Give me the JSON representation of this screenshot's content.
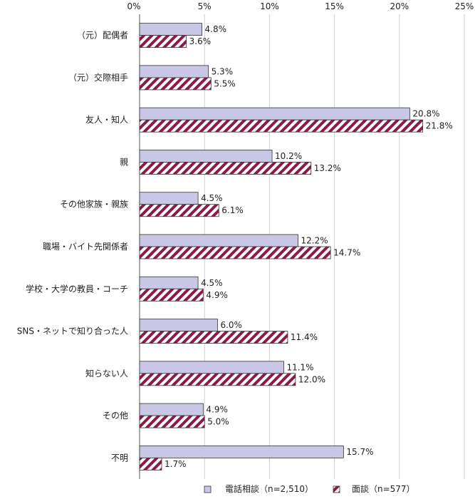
{
  "chart_data": {
    "type": "bar",
    "orientation": "horizontal",
    "title": "",
    "xlabel": "",
    "ylabel": "",
    "xlim": [
      0,
      25
    ],
    "xticks": [
      "0%",
      "5%",
      "10%",
      "15%",
      "20%",
      "25%"
    ],
    "grid": true,
    "legend_position": "bottom",
    "categories": [
      "（元）配偶者",
      "（元）交際相手",
      "友人・知人",
      "親",
      "その他家族・親族",
      "職場・バイト先関係者",
      "学校・大学の教員・コーチ",
      "SNS・ネットで知り合った人",
      "知らない人",
      "その他",
      "不明"
    ],
    "series": [
      {
        "name": "電話相談（n=2,510）",
        "color": "#c8c8e6",
        "values": [
          4.8,
          5.3,
          20.8,
          10.2,
          4.5,
          12.2,
          4.5,
          6.0,
          11.1,
          4.9,
          15.7
        ],
        "labels": [
          "4.8%",
          "5.3%",
          "20.8%",
          "10.2%",
          "4.5%",
          "12.2%",
          "4.5%",
          "6.0%",
          "11.1%",
          "4.9%",
          "15.7%"
        ]
      },
      {
        "name": "面談（n=577）",
        "color": "#8b1a4a",
        "values": [
          3.6,
          5.5,
          21.8,
          13.2,
          6.1,
          14.7,
          4.9,
          11.4,
          12.0,
          5.0,
          1.7
        ],
        "labels": [
          "3.6%",
          "5.5%",
          "21.8%",
          "13.2%",
          "6.1%",
          "14.7%",
          "4.9%",
          "11.4%",
          "12.0%",
          "5.0%",
          "1.7%"
        ]
      }
    ]
  }
}
